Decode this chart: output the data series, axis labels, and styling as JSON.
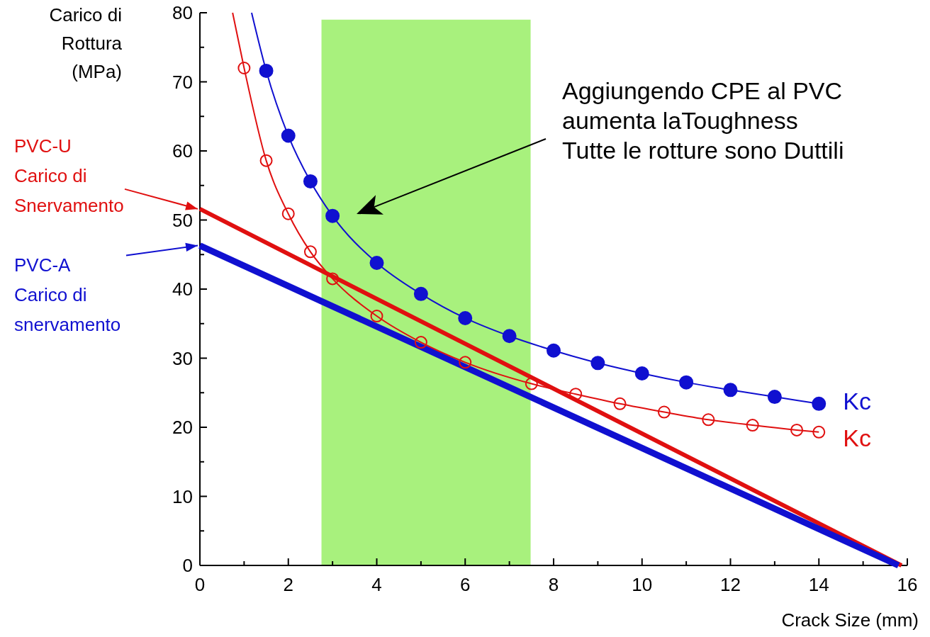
{
  "chart_data": {
    "type": "line",
    "xlabel": "Crack Size (mm)",
    "ylabel": "Carico di\nRottura\n(MPa)",
    "xlim": [
      0,
      16
    ],
    "ylim": [
      0,
      80
    ],
    "xticks": [
      0,
      {
        "value": 1,
        "label": null
      },
      2,
      {
        "value": 3,
        "label": null
      },
      4,
      {
        "value": 5,
        "label": null
      },
      6,
      {
        "value": 7,
        "label": null
      },
      8,
      {
        "value": 9,
        "label": null
      },
      10,
      {
        "value": 11,
        "label": null
      },
      12,
      {
        "value": 13,
        "label": null
      },
      14,
      {
        "value": 15,
        "label": null
      },
      16
    ],
    "yticks": [
      0,
      {
        "value": 5,
        "label": null
      },
      10,
      {
        "value": 15,
        "label": null
      },
      20,
      {
        "value": 25,
        "label": null
      },
      30,
      {
        "value": 35,
        "label": null
      },
      40,
      {
        "value": 45,
        "label": null
      },
      50,
      {
        "value": 55,
        "label": null
      },
      60,
      {
        "value": 65,
        "label": null
      },
      70,
      {
        "value": 75,
        "label": null
      },
      80
    ],
    "grid": false,
    "bands": [
      {
        "axis": "x",
        "from": 2.75,
        "to": 7.48,
        "color": "#99ee66"
      }
    ],
    "annotations": [
      "Aggiungendo CPE al PVC\naumenta laToughness\nTutte le rotture sono Duttili",
      {
        "text": "PVC-U\nCarico di\nSnervamento",
        "x": 0,
        "y": 51.6
      },
      {
        "text": "PVC-A\nCarico di\nsnervamento",
        "x": 0,
        "y": 46.3
      }
    ],
    "series": [
      {
        "color": "#e01010",
        "x": [
          0,
          15.87
        ],
        "values": [
          51.6,
          0
        ]
      },
      {
        "color": "#1010d0",
        "x": [
          0,
          15.8
        ],
        "values": [
          46.3,
          0
        ]
      },
      {
        "color": "#1010d0",
        "x": [
          1.17,
          1.5,
          2,
          2.5,
          3,
          4,
          5,
          6,
          7,
          8,
          9,
          10,
          11,
          12,
          13,
          14
        ],
        "values": [
          80,
          71.6,
          62.2,
          55.6,
          50.6,
          43.8,
          39.3,
          35.8,
          33.2,
          31.1,
          29.3,
          27.8,
          26.5,
          25.4,
          24.4,
          23.4
        ]
      },
      {
        "color": "#e01010",
        "x": [
          0.74,
          1,
          1.5,
          2,
          2.5,
          3,
          4,
          5,
          6,
          7.5,
          8.5,
          9.5,
          10.5,
          11.5,
          12.5,
          13.5,
          14
        ],
        "values": [
          80,
          72,
          58.6,
          50.9,
          45.4,
          41.5,
          36.1,
          32.3,
          29.4,
          26.3,
          24.8,
          23.4,
          22.2,
          21.1,
          20.3,
          19.6,
          19.3
        ]
      },
      {
        "type": "scatter",
        "name": "Kc",
        "color": "#1010d0",
        "x": [
          1.5,
          2,
          2.5,
          3,
          4,
          5,
          6,
          7,
          8,
          9,
          10,
          11,
          12,
          13,
          14
        ],
        "values": [
          71.6,
          62.2,
          55.6,
          50.6,
          43.8,
          39.3,
          35.8,
          33.2,
          31.1,
          29.3,
          27.8,
          26.5,
          25.4,
          24.4,
          23.4
        ],
        "marker": "circle"
      },
      {
        "type": "scatter",
        "name": "Kc",
        "color": "#e01010",
        "x": [
          1,
          1.5,
          2,
          2.5,
          3,
          4,
          5,
          6,
          7.5,
          8.5,
          9.5,
          10.5,
          11.5,
          12.5,
          13.5,
          14
        ],
        "values": [
          72,
          58.6,
          50.9,
          45.4,
          41.5,
          36.1,
          32.3,
          29.4,
          26.3,
          24.8,
          23.4,
          22.2,
          21.1,
          20.3,
          19.6,
          19.3
        ],
        "marker": "circle"
      }
    ]
  }
}
